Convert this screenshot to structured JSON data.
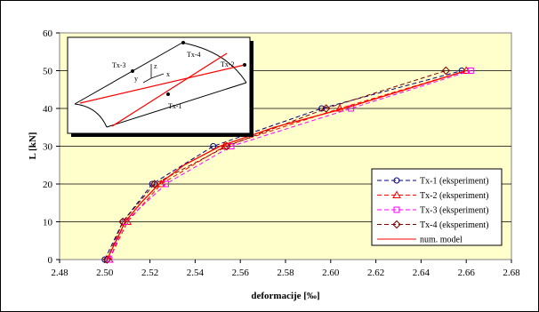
{
  "chart_data": {
    "type": "line",
    "title": "",
    "xlabel": "deformacije [‰]",
    "ylabel": "L   [kN]",
    "xlim": [
      2.48,
      2.68
    ],
    "ylim": [
      0,
      60
    ],
    "xticks": [
      "2.48",
      "2.50",
      "2.52",
      "2.54",
      "2.56",
      "2.58",
      "2.60",
      "2.62",
      "2.64",
      "2.66",
      "2.68"
    ],
    "yticks": [
      "0",
      "10",
      "20",
      "30",
      "40",
      "50",
      "60"
    ],
    "grid": "horizontal",
    "legend_position": "bottom-right",
    "plot_background": "#ffffcc",
    "series": [
      {
        "name": "Tx-1 (eksperiment)",
        "color": "#000080",
        "marker": "circle",
        "line": "dashed",
        "points": [
          [
            2.5,
            0
          ],
          [
            2.508,
            10
          ],
          [
            2.521,
            20
          ],
          [
            2.548,
            30
          ],
          [
            2.596,
            40
          ],
          [
            2.658,
            50
          ]
        ]
      },
      {
        "name": "Tx-2 (eksperiment)",
        "color": "#ff0000",
        "marker": "triangle",
        "line": "dashed",
        "points": [
          [
            2.502,
            0
          ],
          [
            2.51,
            10
          ],
          [
            2.525,
            20
          ],
          [
            2.553,
            30
          ],
          [
            2.604,
            40
          ],
          [
            2.66,
            50
          ]
        ]
      },
      {
        "name": "Tx-3 (eksperiment)",
        "color": "#ff00ff",
        "marker": "square",
        "line": "dashed",
        "points": [
          [
            2.502,
            0
          ],
          [
            2.509,
            10
          ],
          [
            2.527,
            20
          ],
          [
            2.556,
            30
          ],
          [
            2.609,
            40
          ],
          [
            2.662,
            50
          ]
        ]
      },
      {
        "name": "Tx-4 (eksperiment)",
        "color": "#800000",
        "marker": "diamond",
        "line": "dashed",
        "points": [
          [
            2.501,
            0
          ],
          [
            2.508,
            10
          ],
          [
            2.522,
            20
          ],
          [
            2.554,
            30
          ],
          [
            2.598,
            40
          ],
          [
            2.651,
            50
          ]
        ]
      },
      {
        "name": "num. model",
        "color": "#ff0000",
        "marker": "none",
        "line": "solid",
        "points": [
          [
            2.501,
            0
          ],
          [
            2.505,
            5
          ],
          [
            2.509,
            10
          ],
          [
            2.516,
            15
          ],
          [
            2.524,
            20
          ],
          [
            2.535,
            25
          ],
          [
            2.551,
            30
          ],
          [
            2.575,
            35
          ],
          [
            2.606,
            40
          ],
          [
            2.633,
            45
          ],
          [
            2.66,
            50
          ]
        ]
      }
    ],
    "inset": {
      "labels": [
        "Tx-3",
        "Tx-4",
        "Tx-2",
        "Tx-1"
      ],
      "axes": [
        "z",
        "y",
        "x"
      ]
    }
  }
}
